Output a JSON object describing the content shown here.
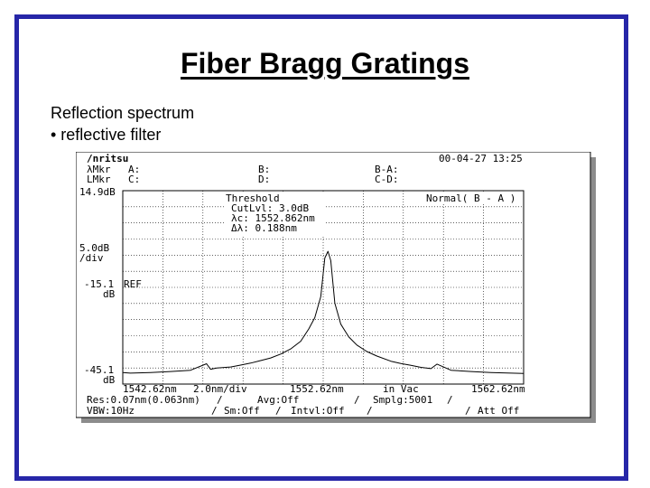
{
  "slide": {
    "title": "Fiber Bragg Gratings",
    "line1": "Reflection spectrum",
    "line2": "• reflective filter"
  },
  "instrument": {
    "brand": "/nritsu",
    "datetime": "00-04-27 13:25",
    "lmkr_label": "λMkr",
    "lmkr_a": "A:",
    "lmkr_b": "B:",
    "lmkr_ba": "B-A:",
    "lvlmkr_label": "LMkr",
    "lvlmkr_c": "C:",
    "lvlmkr_d": "D:",
    "lvlmkr_cd": "C-D:",
    "top_level": "14.9dB",
    "scale_value": "5.0dB",
    "scale_unit": "/div",
    "ref_value": "-15.1",
    "ref_unit": "dB",
    "ref_tag": "REF",
    "bottom_value": "-45.1",
    "bottom_unit": "dB",
    "threshold_title": "Threshold",
    "cutlvl": "CutLvl:  3.0dB",
    "lambda_c": "λc: 1552.862nm",
    "delta_lambda": "Δλ:    0.188nm",
    "mode": "Normal( B - A )",
    "x_start": "1542.62nm",
    "x_div": "2.0nm/div",
    "x_center": "1552.62nm",
    "x_medium": "in Vac",
    "x_end": "1562.62nm",
    "res": "Res:0.07nm(0.063nm)",
    "avg": "Avg:Off",
    "smplg": "Smplg:5001",
    "vbw": "VBW:10Hz",
    "sm": "Sm:Off",
    "intvl": "Intvl:Off",
    "att": "Att Off"
  },
  "chart_data": {
    "type": "line",
    "x_unit": "nm",
    "y_unit": "dB",
    "xlim": [
      1542.62,
      1562.62
    ],
    "ylim": [
      -45.1,
      14.9
    ],
    "grid": true,
    "colors": {
      "trace": "#000000",
      "grid": "#000000",
      "frame": "#000000",
      "shadow": "#8c8c8c"
    },
    "series": [
      {
        "x": [
          1542.62,
          1543.0,
          1544.0,
          1545.0,
          1546.0,
          1546.8,
          1547.0,
          1547.3,
          1548.0,
          1548.5,
          1549.0,
          1549.5,
          1550.0,
          1550.5,
          1551.0,
          1551.5,
          1551.9,
          1552.2,
          1552.5,
          1552.7,
          1552.86,
          1553.0,
          1553.2,
          1553.5,
          1553.9,
          1554.3,
          1554.8,
          1555.3,
          1556.0,
          1556.5,
          1557.0,
          1557.5,
          1558.0,
          1558.3,
          1559.0,
          1560.0,
          1561.0,
          1562.0,
          1562.62
        ],
        "y": [
          -41.5,
          -41.7,
          -41.5,
          -41.2,
          -40.8,
          -38.8,
          -40.5,
          -40.1,
          -39.8,
          -39.2,
          -38.6,
          -37.8,
          -37.0,
          -35.8,
          -34.2,
          -31.8,
          -28.0,
          -24.5,
          -18.0,
          -6.0,
          -3.9,
          -6.8,
          -20.0,
          -26.5,
          -30.5,
          -33.0,
          -35.0,
          -36.4,
          -38.0,
          -38.7,
          -39.3,
          -39.9,
          -40.3,
          -38.9,
          -40.8,
          -41.2,
          -41.5,
          -41.7,
          -41.8
        ]
      }
    ]
  }
}
